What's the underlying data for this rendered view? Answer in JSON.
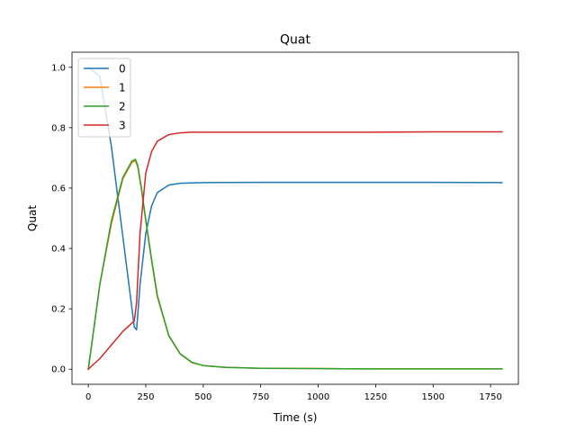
{
  "chart_data": {
    "type": "line",
    "title": "Quat",
    "xlabel": "Time (s)",
    "ylabel": "Quat",
    "xlim": [
      -71,
      1871
    ],
    "ylim": [
      -0.05,
      1.05
    ],
    "xticks": [
      0,
      250,
      500,
      750,
      1000,
      1250,
      1500,
      1750
    ],
    "yticks": [
      0.0,
      0.2,
      0.4,
      0.6,
      0.8,
      1.0
    ],
    "xtick_labels": [
      "0",
      "250",
      "500",
      "750",
      "1000",
      "1250",
      "1500",
      "1750"
    ],
    "ytick_labels": [
      "0.0",
      "0.2",
      "0.4",
      "0.6",
      "0.8",
      "1.0"
    ],
    "grid": false,
    "legend_position": "upper-left",
    "series": [
      {
        "name": "0",
        "color": "#1f77b4",
        "x": [
          0,
          50,
          100,
          150,
          185,
          200,
          210,
          225,
          250,
          275,
          300,
          350,
          400,
          500,
          750,
          1000,
          1250,
          1500,
          1800
        ],
        "y": [
          1.0,
          0.97,
          0.74,
          0.44,
          0.23,
          0.14,
          0.13,
          0.28,
          0.45,
          0.54,
          0.585,
          0.61,
          0.616,
          0.618,
          0.619,
          0.619,
          0.619,
          0.619,
          0.618
        ]
      },
      {
        "name": "1",
        "color": "#ff7f0e",
        "x": [
          0,
          25,
          50,
          100,
          150,
          190,
          205,
          215,
          230,
          250,
          275,
          300,
          350,
          400,
          450,
          500,
          600,
          750,
          1000,
          1250,
          1500,
          1800
        ],
        "y": [
          0.0,
          0.14,
          0.28,
          0.48,
          0.63,
          0.685,
          0.69,
          0.67,
          0.6,
          0.49,
          0.36,
          0.24,
          0.11,
          0.05,
          0.022,
          0.012,
          0.006,
          0.003,
          0.002,
          0.001,
          0.001,
          0.001
        ]
      },
      {
        "name": "2",
        "color": "#2ca02c",
        "x": [
          0,
          25,
          50,
          100,
          150,
          190,
          205,
          215,
          230,
          250,
          275,
          300,
          350,
          400,
          450,
          500,
          600,
          750,
          1000,
          1250,
          1500,
          1800
        ],
        "y": [
          0.0,
          0.14,
          0.28,
          0.49,
          0.635,
          0.69,
          0.695,
          0.675,
          0.605,
          0.495,
          0.365,
          0.245,
          0.112,
          0.051,
          0.023,
          0.012,
          0.006,
          0.003,
          0.002,
          0.001,
          0.001,
          0.001
        ]
      },
      {
        "name": "3",
        "color": "#d62728",
        "x": [
          0,
          50,
          100,
          150,
          200,
          210,
          225,
          250,
          275,
          300,
          350,
          400,
          450,
          500,
          750,
          1000,
          1250,
          1500,
          1800
        ],
        "y": [
          0.0,
          0.035,
          0.08,
          0.125,
          0.16,
          0.22,
          0.45,
          0.65,
          0.72,
          0.755,
          0.777,
          0.783,
          0.785,
          0.785,
          0.785,
          0.785,
          0.785,
          0.786,
          0.786
        ]
      }
    ]
  }
}
